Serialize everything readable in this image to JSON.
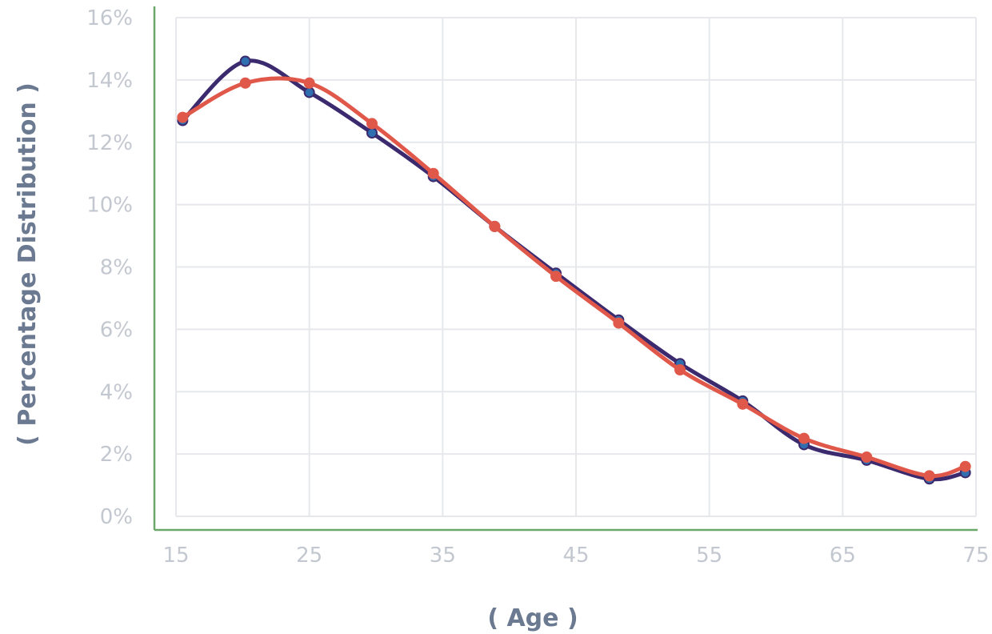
{
  "chart_data": {
    "type": "line",
    "title": "",
    "xlabel": "( Age )",
    "ylabel": "( Percentage Distribution )",
    "xlim": [
      15,
      75
    ],
    "ylim": [
      0,
      16
    ],
    "x_ticks": [
      "15",
      "25",
      "35",
      "45",
      "55",
      "65",
      "75"
    ],
    "y_ticks": [
      "0%",
      "2%",
      "4%",
      "6%",
      "8%",
      "10%",
      "12%",
      "14%",
      "16%"
    ],
    "grid": true,
    "legend": "none",
    "series": [
      {
        "color": "#3b2a6e",
        "marker_color": "#2f6fb0",
        "x": [
          15.5,
          20.2,
          25,
          29.7,
          34.3,
          38.9,
          43.5,
          48.2,
          52.8,
          57.5,
          62.1,
          66.8,
          71.5,
          74.2
        ],
        "values": [
          12.7,
          14.6,
          13.6,
          12.3,
          10.9,
          9.3,
          7.8,
          6.3,
          4.9,
          3.7,
          2.3,
          1.8,
          1.2,
          1.4
        ]
      },
      {
        "color": "#e0584a",
        "marker_color": "#e0584a",
        "x": [
          15.5,
          20.2,
          25,
          29.7,
          34.3,
          38.9,
          43.5,
          48.2,
          52.8,
          57.5,
          62.1,
          66.8,
          71.5,
          74.2
        ],
        "values": [
          12.8,
          13.9,
          13.9,
          12.6,
          11.0,
          9.3,
          7.7,
          6.2,
          4.7,
          3.6,
          2.5,
          1.9,
          1.3,
          1.6
        ]
      }
    ]
  },
  "colors": {
    "grid": "#e6e8ec",
    "axis": "#6aa86a",
    "tick_text": "#c3c8d0",
    "title_text": "#6b7a90"
  }
}
